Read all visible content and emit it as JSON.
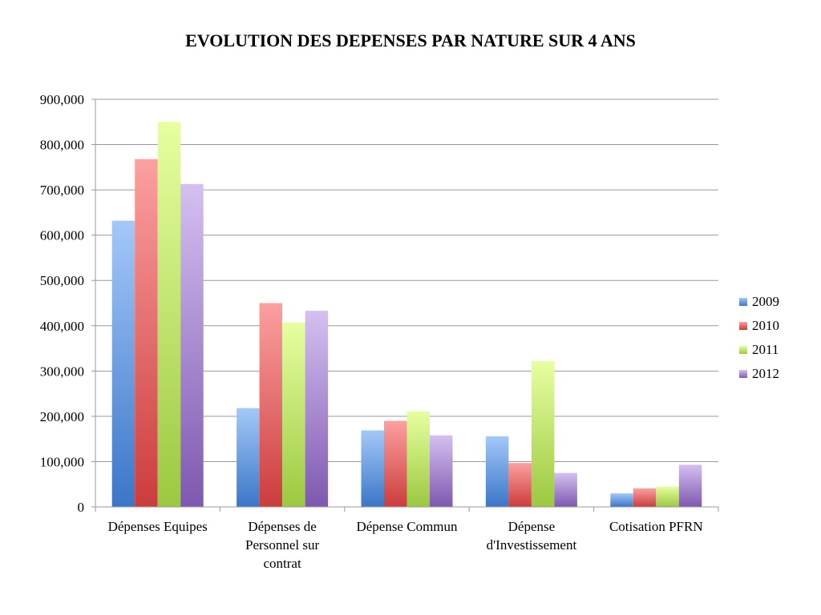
{
  "chart_data": {
    "type": "bar",
    "title": "EVOLUTION DES DEPENSES PAR NATURE SUR 4 ANS",
    "xlabel": "",
    "ylabel": "",
    "ylim": [
      0,
      900000
    ],
    "yticks": [
      0,
      100000,
      200000,
      300000,
      400000,
      500000,
      600000,
      700000,
      800000,
      900000
    ],
    "ytick_labels": [
      "0",
      "100,000",
      "200,000",
      "300,000",
      "400,000",
      "500,000",
      "600,000",
      "700,000",
      "800,000",
      "900,000"
    ],
    "grid": true,
    "legend_position": "right",
    "categories": [
      [
        "Dépenses Equipes"
      ],
      [
        "Dépenses de",
        "Personnel sur",
        "contrat"
      ],
      [
        "Dépense Commun"
      ],
      [
        "Dépense",
        "d'Investissement"
      ],
      [
        "Cotisation PFRN"
      ]
    ],
    "series": [
      {
        "name": "2009",
        "color": "#4a86d8",
        "light": "#a4c8f8",
        "dark": "#3a76c8",
        "values": [
          632000,
          218000,
          169000,
          156000,
          30000
        ]
      },
      {
        "name": "2010",
        "color": "#d84a4a",
        "light": "#fca0a0",
        "dark": "#cc3c3c",
        "values": [
          768000,
          450000,
          190000,
          97000,
          41000
        ]
      },
      {
        "name": "2011",
        "color": "#9ccc4a",
        "light": "#e6ffa0",
        "dark": "#9cc840",
        "values": [
          850000,
          407000,
          211000,
          322000,
          45000
        ]
      },
      {
        "name": "2012",
        "color": "#8a68b8",
        "light": "#d4c0f0",
        "dark": "#7e58b0",
        "values": [
          713000,
          433000,
          158000,
          75000,
          93000
        ]
      }
    ]
  }
}
